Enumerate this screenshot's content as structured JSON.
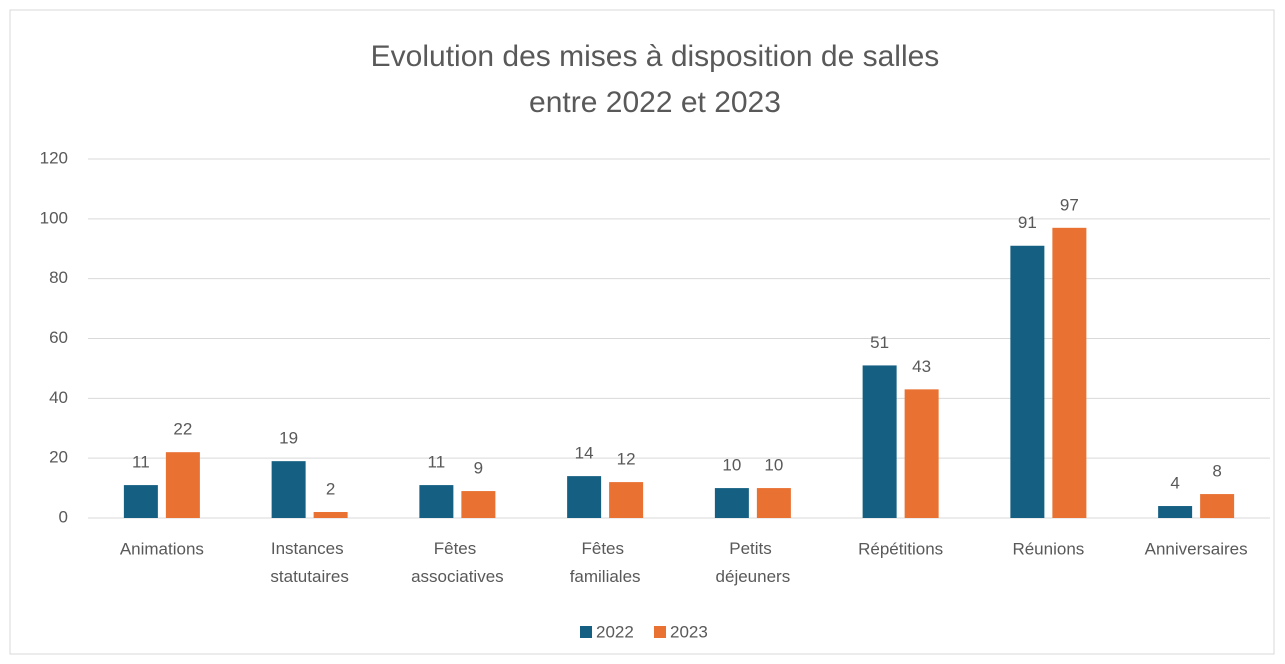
{
  "chart_data": {
    "type": "bar",
    "title": [
      "Evolution des mises à disposition de salles",
      "entre 2022 et 2023"
    ],
    "categories": [
      "Animations",
      "Instances statutaires",
      "Fêtes associatives",
      "Fêtes familiales",
      "Petits déjeuners",
      "Répétitions",
      "Réunions",
      "Anniversaires"
    ],
    "series": [
      {
        "name": "2022",
        "color": "#156082",
        "values": [
          11,
          19,
          11,
          14,
          10,
          51,
          91,
          4
        ]
      },
      {
        "name": "2023",
        "color": "#e97132",
        "values": [
          22,
          2,
          9,
          12,
          10,
          43,
          97,
          8
        ]
      }
    ],
    "ylim": [
      0,
      120
    ],
    "yticks": [
      0,
      20,
      40,
      60,
      80,
      100,
      120
    ],
    "grid": true,
    "legend": "bottom"
  }
}
